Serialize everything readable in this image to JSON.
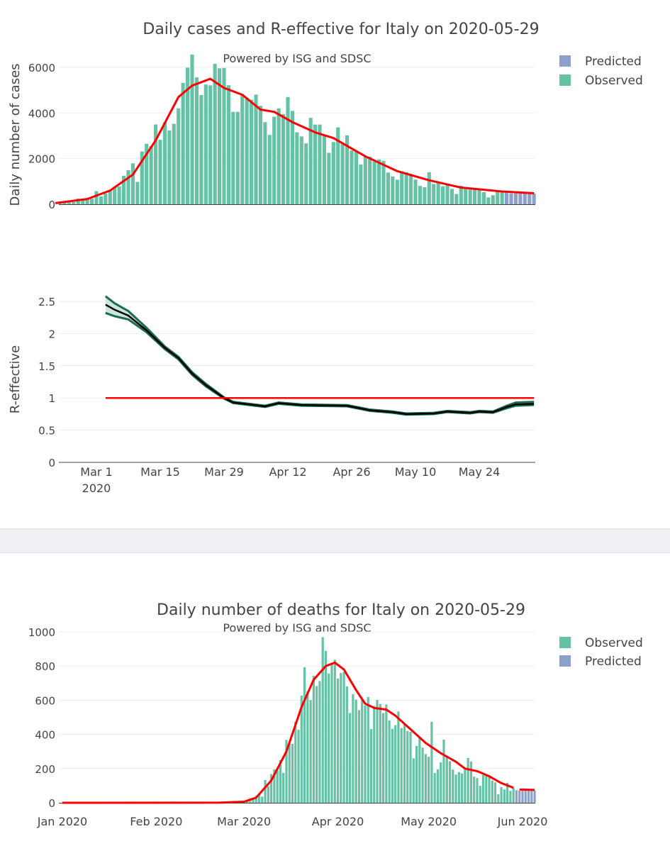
{
  "colors": {
    "observed": "#66c2a5",
    "predicted": "#8da0cb",
    "smooth": "#ff0000",
    "r_line": "#000000",
    "r_band": "#1b6b55"
  },
  "chart_data": [
    {
      "type": "bar",
      "title": "Daily cases and R-effective for Italy on 2020-05-29",
      "subtitle": "Powered by ISG and SDSC",
      "ylabel": "Daily number of cases",
      "ylim": [
        0,
        6800
      ],
      "yticks": [
        0,
        2000,
        4000,
        6000
      ],
      "legend": [
        "Predicted",
        "Observed"
      ],
      "legend_position": "top-right",
      "observed_start": "2020-02-21",
      "observed": [
        14,
        62,
        78,
        93,
        97,
        250,
        240,
        238,
        240,
        573,
        342,
        466,
        587,
        769,
        778,
        1247,
        1492,
        1797,
        977,
        2313,
        2651,
        2547,
        3497,
        2823,
        3590,
        3233,
        3526,
        4207,
        5322,
        5986,
        6557,
        5560,
        4789,
        5249,
        5210,
        6153,
        5959,
        5974,
        5217,
        4050,
        4053,
        4782,
        4668,
        4585,
        4805,
        4316,
        3599,
        3039,
        3836,
        4204,
        3951,
        4694,
        4092,
        3153,
        2972,
        2667,
        3786,
        3493,
        3491,
        3047,
        2256,
        2729,
        3370,
        2646,
        3021,
        2357,
        2324,
        1739,
        2091,
        2086,
        1872,
        1965,
        1900,
        1389,
        1221,
        1075,
        1444,
        1401,
        1327,
        1083,
        802,
        744,
        1402,
        888,
        992,
        789,
        875,
        675,
        451,
        813,
        665,
        642,
        652,
        669,
        531,
        300,
        397,
        584,
        593,
        516
      ],
      "predicted_start": "2020-05-30",
      "predicted": [
        480,
        478,
        476,
        474,
        472,
        470,
        468
      ],
      "smoothed": [
        [
          "2020-02-21",
          50
        ],
        [
          "2020-02-28",
          230
        ],
        [
          "2020-03-04",
          600
        ],
        [
          "2020-03-09",
          1300
        ],
        [
          "2020-03-14",
          2800
        ],
        [
          "2020-03-19",
          4700
        ],
        [
          "2020-03-22",
          5200
        ],
        [
          "2020-03-26",
          5500
        ],
        [
          "2020-03-29",
          5100
        ],
        [
          "2020-04-02",
          4800
        ],
        [
          "2020-04-06",
          4150
        ],
        [
          "2020-04-09",
          4050
        ],
        [
          "2020-04-13",
          3600
        ],
        [
          "2020-04-18",
          3150
        ],
        [
          "2020-04-22",
          2900
        ],
        [
          "2020-04-29",
          2100
        ],
        [
          "2020-05-06",
          1450
        ],
        [
          "2020-05-13",
          1050
        ],
        [
          "2020-05-20",
          730
        ],
        [
          "2020-05-29",
          560
        ],
        [
          "2020-06-05",
          480
        ]
      ]
    },
    {
      "type": "line",
      "ylabel": "R-effective",
      "ylim": [
        0,
        2.75
      ],
      "yticks": [
        0,
        0.5,
        1,
        1.5,
        2,
        2.5
      ],
      "xticks": [
        "Mar 1\n2020",
        "Mar 15",
        "Mar 29",
        "Apr 12",
        "Apr 26",
        "May 10",
        "May 24"
      ],
      "xtick_dates": [
        "2020-03-01",
        "2020-03-15",
        "2020-03-29",
        "2020-04-12",
        "2020-04-26",
        "2020-05-10",
        "2020-05-24"
      ],
      "reference_line": {
        "y": 1,
        "from": "2020-03-03",
        "to": "2020-06-05"
      },
      "r": [
        [
          "2020-03-03",
          2.45,
          2.32,
          2.58
        ],
        [
          "2020-03-05",
          2.37,
          2.27,
          2.47
        ],
        [
          "2020-03-08",
          2.28,
          2.22,
          2.35
        ],
        [
          "2020-03-12",
          2.05,
          2.02,
          2.09
        ],
        [
          "2020-03-16",
          1.78,
          1.76,
          1.8
        ],
        [
          "2020-03-19",
          1.62,
          1.6,
          1.64
        ],
        [
          "2020-03-22",
          1.38,
          1.36,
          1.4
        ],
        [
          "2020-03-25",
          1.2,
          1.18,
          1.22
        ],
        [
          "2020-03-29",
          1.0,
          0.99,
          1.01
        ],
        [
          "2020-03-31",
          0.93,
          0.92,
          0.94
        ],
        [
          "2020-04-07",
          0.87,
          0.86,
          0.88
        ],
        [
          "2020-04-10",
          0.92,
          0.91,
          0.93
        ],
        [
          "2020-04-15",
          0.89,
          0.88,
          0.9
        ],
        [
          "2020-04-25",
          0.88,
          0.87,
          0.89
        ],
        [
          "2020-04-30",
          0.81,
          0.8,
          0.82
        ],
        [
          "2020-05-05",
          0.78,
          0.77,
          0.79
        ],
        [
          "2020-05-08",
          0.75,
          0.74,
          0.76
        ],
        [
          "2020-05-14",
          0.76,
          0.75,
          0.77
        ],
        [
          "2020-05-17",
          0.79,
          0.78,
          0.8
        ],
        [
          "2020-05-22",
          0.77,
          0.76,
          0.78
        ],
        [
          "2020-05-24",
          0.79,
          0.78,
          0.8
        ],
        [
          "2020-05-27",
          0.78,
          0.77,
          0.79
        ],
        [
          "2020-05-30",
          0.86,
          0.84,
          0.88
        ],
        [
          "2020-06-01",
          0.9,
          0.88,
          0.93
        ],
        [
          "2020-06-05",
          0.91,
          0.89,
          0.94
        ]
      ]
    },
    {
      "type": "bar",
      "title": "Daily number of deaths for Italy on 2020-05-29",
      "subtitle": "Powered by ISG and SDSC",
      "ylim": [
        0,
        1050
      ],
      "yticks": [
        0,
        200,
        400,
        600,
        800,
        1000
      ],
      "xticks": [
        "Jan 2020",
        "Feb 2020",
        "Mar 2020",
        "Apr 2020",
        "May 2020",
        "Jun 2020"
      ],
      "xtick_dates": [
        "2020-01-01",
        "2020-02-01",
        "2020-03-01",
        "2020-04-01",
        "2020-05-01",
        "2020-06-01"
      ],
      "legend": [
        "Observed",
        "Predicted"
      ],
      "legend_position": "top-right",
      "observed_start": "2020-02-21",
      "observed": [
        1,
        1,
        1,
        4,
        3,
        2,
        5,
        4,
        8,
        5,
        18,
        27,
        28,
        41,
        49,
        36,
        133,
        97,
        168,
        196,
        189,
        250,
        175,
        368,
        349,
        345,
        475,
        427,
        627,
        793,
        651,
        601,
        743,
        683,
        712,
        969,
        889,
        756,
        812,
        837,
        727,
        760,
        766,
        681,
        525,
        636,
        604,
        542,
        610,
        570,
        619,
        431,
        566,
        602,
        578,
        525,
        575,
        482,
        433,
        454,
        534,
        437,
        464,
        420,
        415,
        260,
        333,
        382,
        323,
        285,
        269,
        474,
        174,
        195,
        236,
        369,
        274,
        243,
        194,
        165,
        179,
        172,
        195,
        262,
        242,
        153,
        145,
        99,
        162,
        161,
        156,
        130,
        119,
        50,
        92,
        78,
        117,
        70,
        87
      ],
      "predicted_start": "2020-05-30",
      "predicted": [
        73,
        72,
        72,
        71,
        71,
        70,
        70
      ],
      "smoothed": [
        [
          "2020-01-01",
          0
        ],
        [
          "2020-02-22",
          1
        ],
        [
          "2020-03-01",
          6
        ],
        [
          "2020-03-05",
          30
        ],
        [
          "2020-03-10",
          130
        ],
        [
          "2020-03-15",
          300
        ],
        [
          "2020-03-20",
          560
        ],
        [
          "2020-03-24",
          720
        ],
        [
          "2020-03-28",
          800
        ],
        [
          "2020-03-31",
          820
        ],
        [
          "2020-04-03",
          780
        ],
        [
          "2020-04-07",
          660
        ],
        [
          "2020-04-10",
          580
        ],
        [
          "2020-04-13",
          555
        ],
        [
          "2020-04-17",
          545
        ],
        [
          "2020-04-20",
          510
        ],
        [
          "2020-04-25",
          430
        ],
        [
          "2020-04-30",
          350
        ],
        [
          "2020-05-05",
          290
        ],
        [
          "2020-05-10",
          240
        ],
        [
          "2020-05-13",
          200
        ],
        [
          "2020-05-17",
          185
        ],
        [
          "2020-05-21",
          155
        ],
        [
          "2020-05-25",
          115
        ],
        [
          "2020-05-29",
          88
        ]
      ],
      "smoothed_pred": [
        [
          "2020-05-31",
          78
        ],
        [
          "2020-06-05",
          75
        ]
      ]
    }
  ]
}
